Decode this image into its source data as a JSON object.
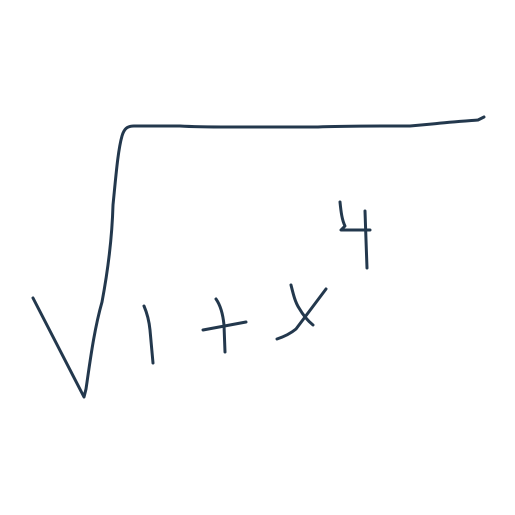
{
  "expression": {
    "latex": "\\sqrt{1+x^4}",
    "symbols": [
      "√",
      "1",
      "+",
      "x",
      "4"
    ]
  },
  "colors": {
    "background": "#ffffff",
    "ink": "#23384d"
  }
}
